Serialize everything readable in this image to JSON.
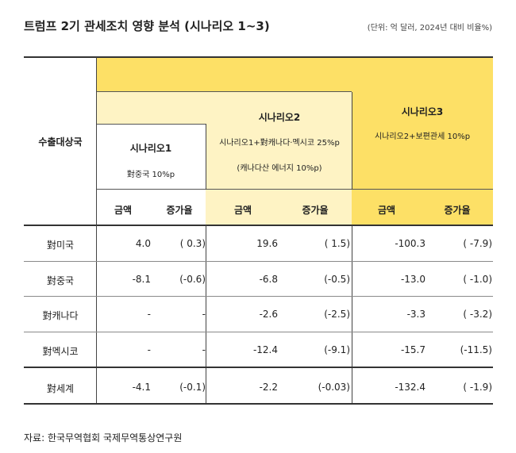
{
  "title": "트럼프 2기 관세조치 영향 분석 (시나리오 1~3)",
  "unit": "(단위: 억 달러, 2024년 대비 비율%)",
  "table": {
    "row_header": "수출대상국",
    "scenarios": [
      {
        "name": "시나리오1",
        "desc": "對중국 10%p",
        "desc2": ""
      },
      {
        "name": "시나리오2",
        "desc": "시나리오1+對캐나다·멕시코 25%p",
        "desc2": "(캐나다산 에너지 10%p)"
      },
      {
        "name": "시나리오3",
        "desc": "시나리오2+보편관세 10%p",
        "desc2": ""
      }
    ],
    "sub_headers": {
      "amount": "금액",
      "rate": "증가율"
    },
    "rows": [
      {
        "country": "對미국",
        "s1a": "4.0",
        "s1r": "( 0.3)",
        "s2a": "19.6",
        "s2r": "( 1.5)",
        "s3a": "-100.3",
        "s3r": "( -7.9)"
      },
      {
        "country": "對중국",
        "s1a": "-8.1",
        "s1r": "(-0.6)",
        "s2a": "-6.8",
        "s2r": "(-0.5)",
        "s3a": "-13.0",
        "s3r": "( -1.0)"
      },
      {
        "country": "對캐나다",
        "s1a": "-",
        "s1r": "-",
        "s2a": "-2.6",
        "s2r": "(-2.5)",
        "s3a": "-3.3",
        "s3r": "( -3.2)"
      },
      {
        "country": "對멕시코",
        "s1a": "-",
        "s1r": "-",
        "s2a": "-12.4",
        "s2r": "(-9.1)",
        "s3a": "-15.7",
        "s3r": "(-11.5)"
      },
      {
        "country": "對세계",
        "s1a": "-4.1",
        "s1r": "(-0.1)",
        "s2a": "-2.2",
        "s2r": "(-0.03)",
        "s3a": "-132.4",
        "s3r": "( -1.9)"
      }
    ]
  },
  "source": "자료: 한국무역협회 국제무역통상연구원",
  "colors": {
    "yellow": "#fde066",
    "light_yellow": "#fef3c4"
  }
}
